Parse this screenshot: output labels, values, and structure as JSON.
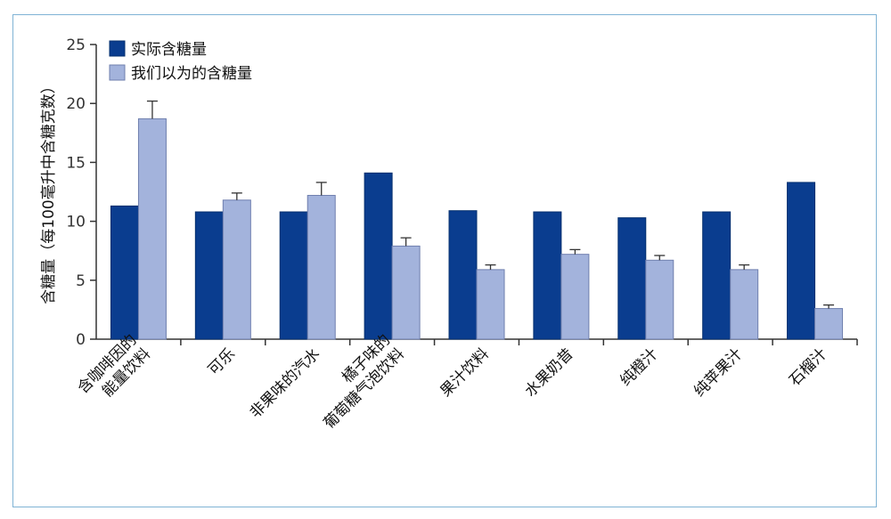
{
  "chart_data": {
    "type": "bar",
    "ylabel": "含糖量（每100毫升中含糖克数）",
    "ylim": [
      0,
      25
    ],
    "yticks": [
      0,
      5,
      10,
      15,
      20,
      25
    ],
    "grid": false,
    "legend_position": "top-left",
    "categories": [
      [
        "含咖啡因的",
        "能量饮料"
      ],
      [
        "可乐"
      ],
      [
        "非果味的汽水"
      ],
      [
        "橘子味的",
        "葡萄糖气泡饮料"
      ],
      [
        "果汁饮料"
      ],
      [
        "水果奶昔"
      ],
      [
        "纯橙汁"
      ],
      [
        "纯苹果汁"
      ],
      [
        "石榴汁"
      ]
    ],
    "series": [
      {
        "name": "实际含糖量",
        "color": "#0a3d8f",
        "values": [
          11.3,
          10.8,
          10.8,
          14.1,
          10.9,
          10.8,
          10.3,
          10.8,
          13.3
        ]
      },
      {
        "name": "我们以为的含糖量",
        "color": "#a3b3dc",
        "values": [
          18.7,
          11.8,
          12.2,
          7.9,
          5.9,
          7.2,
          6.7,
          5.9,
          2.6
        ],
        "error": [
          1.5,
          0.6,
          1.1,
          0.7,
          0.4,
          0.4,
          0.4,
          0.4,
          0.3
        ]
      }
    ]
  }
}
